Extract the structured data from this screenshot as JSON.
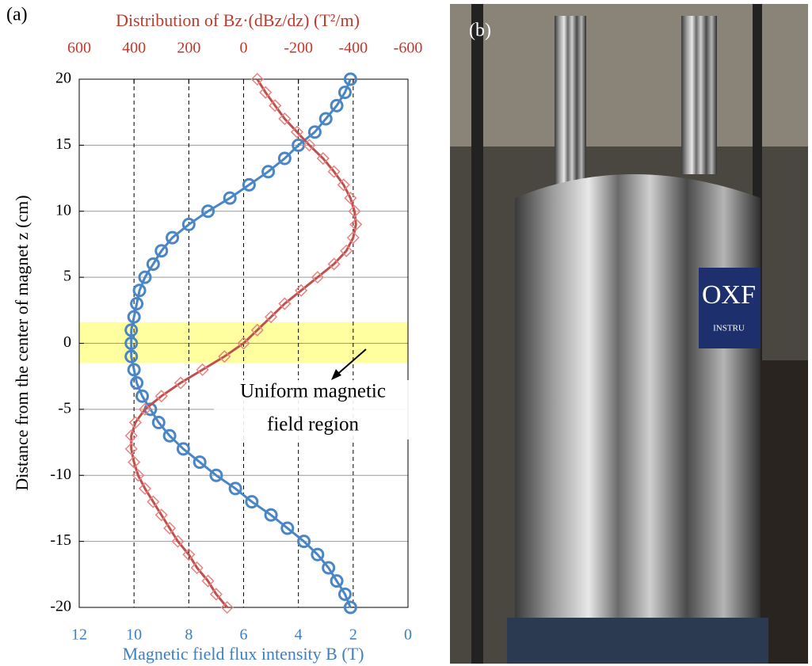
{
  "chart_data": {
    "type": "line",
    "orientation": "horizontal",
    "panel_label": "(a)",
    "title": "Distribution of Bz·(dBz/dz)  (T²/m)",
    "xlabel": "Magnetic field flux intensity B (T)",
    "ylabel": "Distance from the center of magnet z (cm)",
    "annotation": [
      "Uniform magnetic",
      "field region"
    ],
    "band": [
      -1.5,
      1.6
    ],
    "z": [
      -20,
      -19,
      -18,
      -17,
      -16,
      -15,
      -14,
      -13,
      -12,
      -11,
      -10,
      -9,
      -8,
      -7,
      -6,
      -5,
      -4,
      -3,
      -2,
      -1,
      0,
      1,
      2,
      3,
      4,
      5,
      6,
      7,
      8,
      9,
      10,
      11,
      12,
      13,
      14,
      15,
      16,
      17,
      18,
      19,
      20
    ],
    "xlim": [
      12,
      0
    ],
    "xticks": [
      12,
      10,
      8,
      6,
      4,
      2,
      0
    ],
    "x2lim": [
      600,
      -600
    ],
    "x2ticks": [
      600,
      400,
      200,
      0,
      -200,
      -400,
      -600
    ],
    "ylim": [
      -20,
      20
    ],
    "yticks": [
      20,
      15,
      10,
      5,
      0,
      -5,
      -10,
      -15,
      -20
    ],
    "grid": true,
    "series": [
      {
        "name": "B",
        "color": "#4a86c5",
        "marker": "circle",
        "axis": "x",
        "values": [
          2.1,
          2.3,
          2.6,
          2.9,
          3.3,
          3.8,
          4.4,
          5.0,
          5.7,
          6.3,
          7.0,
          7.6,
          8.2,
          8.7,
          9.1,
          9.4,
          9.7,
          9.9,
          10.0,
          10.1,
          10.1,
          10.1,
          10.0,
          9.9,
          9.8,
          9.6,
          9.3,
          9.0,
          8.6,
          8.0,
          7.3,
          6.5,
          5.8,
          5.1,
          4.5,
          4.0,
          3.4,
          3.0,
          2.6,
          2.3,
          2.1
        ]
      },
      {
        "name": "Bz·(dBz/dz)",
        "color": "#c0504d",
        "marker": "diamond",
        "axis": "x2",
        "values": [
          60,
          100,
          130,
          170,
          200,
          240,
          270,
          300,
          330,
          360,
          385,
          400,
          410,
          410,
          395,
          360,
          300,
          230,
          150,
          70,
          0,
          -50,
          -100,
          -150,
          -210,
          -270,
          -330,
          -375,
          -400,
          -410,
          -405,
          -390,
          -365,
          -330,
          -290,
          -240,
          -195,
          -150,
          -115,
          -80,
          -50
        ]
      }
    ]
  },
  "photo": {
    "panel_label": "(b)",
    "logo": "OXF",
    "logo_sub": "INSTRU"
  }
}
